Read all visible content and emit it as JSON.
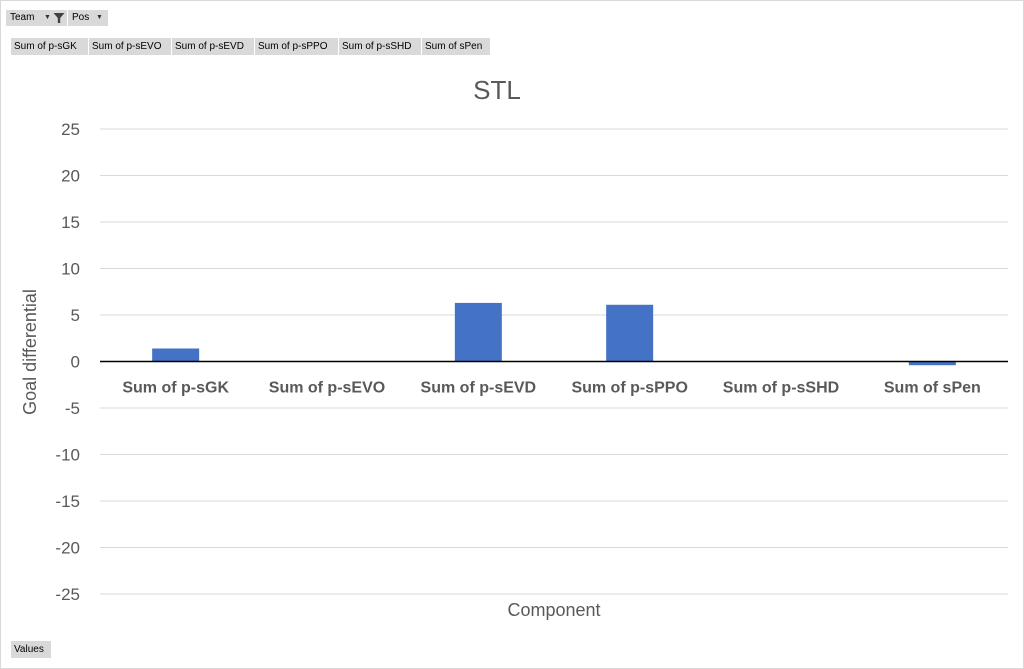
{
  "filters": {
    "team_label": "Team",
    "pos_label": "Pos",
    "values_label": "Values"
  },
  "value_fields": [
    "Sum of p-sGK",
    "Sum of p-sEVO",
    "Sum of p-sEVD",
    "Sum of p-sPPO",
    "Sum of p-sSHD",
    "Sum of sPen"
  ],
  "colors": {
    "bar": "#4472c4",
    "grid": "#d9d9d9",
    "text": "#595959",
    "zero_line": "#000000",
    "field_button": "#d9d9d9"
  },
  "chart_data": {
    "type": "bar",
    "title": "STL",
    "xlabel": "Component",
    "ylabel": "Goal differential",
    "categories": [
      "Sum of p-sGK",
      "Sum of p-sEVO",
      "Sum of p-sEVD",
      "Sum of p-sPPO",
      "Sum of p-sSHD",
      "Sum of sPen"
    ],
    "values": [
      1.4,
      0,
      6.3,
      6.1,
      0,
      -0.4
    ],
    "ylim": [
      -25,
      25
    ],
    "yticks": [
      25,
      20,
      15,
      10,
      5,
      0,
      -5,
      -10,
      -15,
      -20,
      -25
    ],
    "grid": true,
    "legend": "none"
  }
}
